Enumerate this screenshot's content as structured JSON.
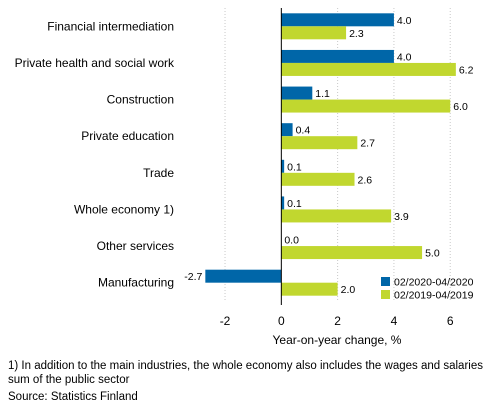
{
  "chart_data": {
    "type": "bar",
    "orientation": "horizontal",
    "categories": [
      "Financial intermediation",
      "Private health and social work",
      "Construction",
      "Private education",
      "Trade",
      "Whole economy 1)",
      "Other services",
      "Manufacturing"
    ],
    "series": [
      {
        "name": "02/2020-04/2020",
        "color": "#0066a8",
        "values": [
          4.0,
          4.0,
          1.1,
          0.4,
          0.1,
          0.1,
          0.0,
          -2.7
        ]
      },
      {
        "name": "02/2019-04/2019",
        "color": "#c1d72f",
        "values": [
          2.3,
          6.2,
          6.0,
          2.7,
          2.6,
          3.9,
          5.0,
          2.0
        ]
      }
    ],
    "value_labels": [
      [
        "4.0",
        "4.0",
        "1.1",
        "0.4",
        "0.1",
        "0.1",
        "0.0",
        "-2.7"
      ],
      [
        "2.3",
        "6.2",
        "6.0",
        "2.7",
        "2.6",
        "3.9",
        "5.0",
        "2.0"
      ]
    ],
    "xlabel": "Year-on-year change, %",
    "xlim": [
      -3.6,
      7.2
    ],
    "xticks": [
      -2,
      0,
      2,
      4,
      6
    ],
    "grid": "vertical",
    "legend_position": "bottom-right"
  },
  "footnote": "1) In addition to the main industries, the whole economy also includes the wages and salaries sum of the public sector",
  "source": "Source: Statistics Finland"
}
